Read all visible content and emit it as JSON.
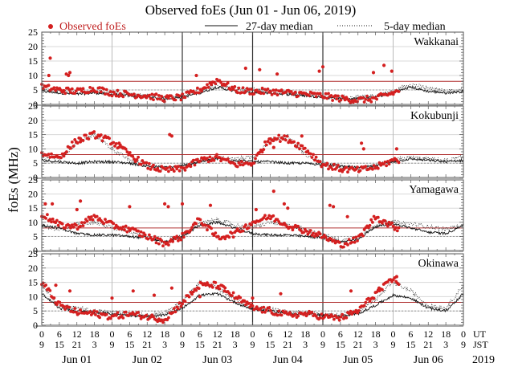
{
  "chart_data": {
    "type": "scatter",
    "title": "Observed foEs (Jun 01 - Jun 06, 2019)",
    "ylabel": "foEs (MHz)",
    "xlabel": "",
    "legend": {
      "placement": "top",
      "entries": [
        {
          "label": "Observed foEs",
          "style": "dot",
          "color": "#d42020"
        },
        {
          "label": "27-day median",
          "style": "solid",
          "color": "#111111"
        },
        {
          "label": "5-day median",
          "style": "dotted",
          "color": "#111111"
        }
      ]
    },
    "ylim": [
      0,
      25
    ],
    "yticks": [
      "0",
      "5",
      "10",
      "15",
      "20",
      "25"
    ],
    "x_days": 6,
    "xticks_ut": [
      "0",
      "6",
      "12",
      "18",
      "0",
      "6",
      "12",
      "18",
      "0",
      "6",
      "12",
      "18",
      "0",
      "6",
      "12",
      "18",
      "0",
      "6",
      "12",
      "18",
      "0",
      "6",
      "12",
      "18",
      "0"
    ],
    "xticks_jst": [
      "9",
      "15",
      "21",
      "3",
      "9",
      "15",
      "21",
      "3",
      "9",
      "15",
      "21",
      "3",
      "9",
      "15",
      "21",
      "3",
      "9",
      "15",
      "21",
      "3",
      "9",
      "15",
      "21",
      "3",
      "9"
    ],
    "xtick_row_labels": [
      "UT",
      "JST"
    ],
    "day_labels": [
      "Jun 01",
      "Jun 02",
      "Jun 03",
      "Jun 04",
      "Jun 05",
      "Jun 06"
    ],
    "year_label": "2019",
    "observed_until_day": 5.1,
    "reference_lines": {
      "red_solid": 8.0,
      "gray_dashed": 5.0
    },
    "colors": {
      "observed": "#d42020",
      "ref_red": "#b03030",
      "grid": "#d8d8d8",
      "ref_dash": "#888888"
    },
    "panels": [
      {
        "station": "Wakkanai",
        "median27_profile": [
          4.5,
          4.0,
          3.5,
          4.0,
          3.5,
          3.0,
          2.5,
          2.0,
          2.5,
          4.0,
          6.0,
          4.5,
          4.0,
          4.0,
          3.5,
          3.0,
          2.5,
          2.0,
          2.0,
          2.5,
          4.0,
          6.0,
          4.5,
          4.0
        ],
        "median5_profile": [
          5.0,
          4.5,
          4.0,
          4.5,
          4.0,
          3.5,
          3.0,
          2.5,
          3.0,
          4.5,
          6.5,
          5.5,
          5.0,
          4.5,
          4.0,
          3.5,
          3.0,
          2.5,
          2.5,
          3.0,
          4.5,
          7.0,
          5.5,
          4.5
        ],
        "observed_profile": [
          6.0,
          5.0,
          4.5,
          5.5,
          4.0,
          3.5,
          3.0,
          2.0,
          2.5,
          5.0,
          8.5,
          5.0,
          4.5,
          4.5,
          4.0,
          3.5,
          3.0,
          2.0,
          1.5,
          2.0,
          4.0,
          6.0,
          4.5,
          4.0
        ],
        "outliers": [
          [
            0.12,
            16.0
          ],
          [
            0.1,
            10.0
          ],
          [
            0.35,
            10.5
          ],
          [
            0.38,
            10.0
          ],
          [
            0.4,
            11.0
          ],
          [
            2.9,
            12.5
          ],
          [
            2.2,
            10.0
          ],
          [
            3.35,
            10.5
          ],
          [
            3.1,
            12.0
          ],
          [
            4.0,
            13.0
          ],
          [
            3.95,
            11.5
          ],
          [
            4.72,
            11.0
          ],
          [
            4.87,
            13.5
          ],
          [
            4.98,
            11.5
          ]
        ]
      },
      {
        "station": "Kokubunji",
        "median27_profile": [
          6.0,
          5.5,
          5.0,
          5.5,
          5.5,
          5.0,
          4.0,
          3.5,
          4.0,
          5.5,
          6.5,
          6.0,
          5.5,
          5.5,
          5.0,
          5.0,
          4.5,
          4.0,
          3.5,
          4.0,
          5.5,
          6.5,
          6.0,
          5.5
        ],
        "median5_profile": [
          7.0,
          6.5,
          12.0,
          15.0,
          10.0,
          6.0,
          4.5,
          3.0,
          4.0,
          6.0,
          7.0,
          6.5,
          7.0,
          13.0,
          14.5,
          8.0,
          5.0,
          3.5,
          3.0,
          4.0,
          6.0,
          7.0,
          6.5,
          6.0
        ],
        "observed_profile": [
          8.5,
          7.0,
          13.0,
          15.0,
          12.5,
          8.0,
          4.0,
          2.5,
          3.0,
          6.0,
          7.0,
          4.5,
          5.0,
          14.0,
          13.5,
          10.0,
          4.5,
          3.0,
          2.5,
          3.5,
          6.0,
          6.5,
          5.0,
          5.5
        ],
        "outliers": [
          [
            0.55,
            12.5
          ],
          [
            1.1,
            12.0
          ],
          [
            1.15,
            10.5
          ],
          [
            1.82,
            15.0
          ],
          [
            1.85,
            14.5
          ],
          [
            3.25,
            12.0
          ],
          [
            3.3,
            10.5
          ],
          [
            3.7,
            14.5
          ],
          [
            4.55,
            12.0
          ],
          [
            4.58,
            10.0
          ],
          [
            5.05,
            10.0
          ]
        ]
      },
      {
        "station": "Yamagawa",
        "median27_profile": [
          9.0,
          8.0,
          6.0,
          5.5,
          5.5,
          5.0,
          4.5,
          3.0,
          5.0,
          9.0,
          10.0,
          8.0,
          6.0,
          5.5,
          5.5,
          5.0,
          4.5,
          3.0,
          4.0,
          8.5,
          9.5,
          8.0,
          6.5,
          6.0
        ],
        "median5_profile": [
          9.0,
          7.0,
          9.5,
          10.0,
          8.0,
          7.0,
          5.0,
          3.0,
          5.5,
          9.5,
          11.0,
          9.0,
          8.0,
          10.0,
          9.0,
          7.5,
          5.5,
          3.5,
          4.5,
          9.0,
          10.0,
          9.5,
          8.5,
          7.5
        ],
        "observed_profile": [
          13.0,
          9.0,
          8.5,
          12.0,
          9.0,
          7.5,
          5.0,
          2.5,
          5.0,
          11.0,
          4.5,
          6.0,
          10.0,
          12.0,
          9.0,
          7.0,
          5.0,
          2.0,
          4.0,
          12.0,
          8.5,
          6.5,
          9.0,
          8.0
        ],
        "outliers": [
          [
            0.05,
            16.5
          ],
          [
            0.15,
            16.5
          ],
          [
            0.5,
            14.5
          ],
          [
            0.55,
            17.5
          ],
          [
            1.25,
            15.5
          ],
          [
            1.75,
            16.5
          ],
          [
            1.8,
            15.5
          ],
          [
            2.0,
            16.5
          ],
          [
            2.4,
            16.0
          ],
          [
            3.05,
            14.5
          ],
          [
            3.3,
            21.0
          ],
          [
            3.45,
            16.5
          ],
          [
            3.5,
            15.0
          ],
          [
            4.1,
            16.0
          ],
          [
            4.15,
            15.5
          ],
          [
            4.35,
            12.0
          ]
        ]
      },
      {
        "station": "Okinawa",
        "median27_profile": [
          11.0,
          6.0,
          5.0,
          4.5,
          4.0,
          3.5,
          3.0,
          3.5,
          6.0,
          10.5,
          11.0,
          8.0,
          5.5,
          5.0,
          4.0,
          4.0,
          3.5,
          3.0,
          4.0,
          7.0,
          10.5,
          9.5,
          6.0,
          5.0
        ],
        "median5_profile": [
          14.0,
          7.0,
          6.0,
          5.0,
          4.5,
          4.0,
          3.5,
          4.5,
          8.0,
          15.0,
          13.0,
          9.0,
          6.0,
          6.0,
          4.5,
          4.5,
          4.0,
          3.5,
          5.0,
          9.0,
          15.0,
          12.0,
          7.0,
          6.0
        ],
        "observed_profile": [
          15.0,
          7.0,
          4.5,
          4.0,
          3.0,
          4.0,
          3.0,
          2.0,
          8.0,
          14.0,
          14.0,
          10.0,
          6.0,
          5.0,
          3.5,
          4.0,
          3.0,
          2.5,
          5.0,
          11.0,
          16.0,
          13.5,
          9.0,
          7.0
        ],
        "outliers": [
          [
            0.2,
            14.0
          ],
          [
            0.4,
            12.0
          ],
          [
            1.0,
            9.5
          ],
          [
            1.3,
            12.0
          ],
          [
            1.6,
            10.5
          ],
          [
            1.85,
            13.0
          ],
          [
            2.25,
            10.0
          ],
          [
            2.6,
            12.0
          ],
          [
            3.0,
            9.5
          ],
          [
            3.4,
            11.0
          ],
          [
            4.4,
            12.0
          ],
          [
            4.8,
            13.0
          ],
          [
            5.05,
            17.0
          ]
        ]
      }
    ]
  }
}
